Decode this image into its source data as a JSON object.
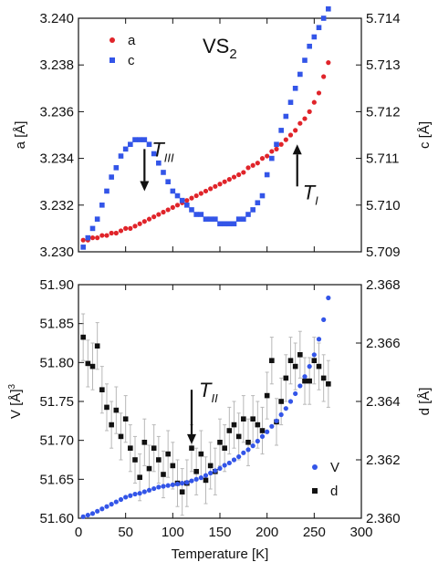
{
  "chart_data": [
    {
      "type": "scatter",
      "title": "VS",
      "title_subscript": "2",
      "ylabel_left": "a [Å]",
      "ylabel_right": "c [Å]",
      "ylim_left": [
        3.23,
        3.24
      ],
      "ylim_right": [
        5.709,
        5.714
      ],
      "xlim": [
        0,
        300
      ],
      "yticks_left": [
        "3.230",
        "3.232",
        "3.234",
        "3.236",
        "3.238",
        "3.240"
      ],
      "yticks_right": [
        "5.709",
        "5.710",
        "5.711",
        "5.712",
        "5.713",
        "5.714"
      ],
      "legend_position": "top-left",
      "colors": {
        "a": "#e0242a",
        "c": "#3355e8"
      },
      "annotations": [
        {
          "text": "T",
          "subscript": "III",
          "arrow": "down",
          "x": 70,
          "y_axis": "right",
          "y_from": 5.7112,
          "y_to": 5.7103
        },
        {
          "text": "T",
          "subscript": "I",
          "arrow": "up",
          "x": 232,
          "y_axis": "right",
          "y_from": 5.7104,
          "y_to": 5.7113
        }
      ],
      "series": [
        {
          "name": "a",
          "axis": "left",
          "marker": "circle",
          "x": [
            5,
            10,
            15,
            20,
            25,
            30,
            35,
            40,
            45,
            50,
            55,
            60,
            65,
            70,
            75,
            80,
            85,
            90,
            95,
            100,
            105,
            110,
            115,
            120,
            125,
            130,
            135,
            140,
            145,
            150,
            155,
            160,
            165,
            170,
            175,
            180,
            185,
            190,
            195,
            200,
            205,
            210,
            215,
            220,
            225,
            230,
            235,
            240,
            245,
            250,
            255,
            260,
            265
          ],
          "y": [
            3.2305,
            3.2305,
            3.2306,
            3.2306,
            3.2307,
            3.2307,
            3.2308,
            3.2308,
            3.2309,
            3.231,
            3.231,
            3.2311,
            3.2312,
            3.2313,
            3.2314,
            3.2315,
            3.2316,
            3.2317,
            3.2318,
            3.2319,
            3.232,
            3.2321,
            3.2322,
            3.2323,
            3.2324,
            3.2325,
            3.2326,
            3.2327,
            3.2328,
            3.2329,
            3.233,
            3.2331,
            3.2332,
            3.2333,
            3.2334,
            3.2336,
            3.2337,
            3.2338,
            3.234,
            3.2341,
            3.2343,
            3.2344,
            3.2346,
            3.2348,
            3.235,
            3.2352,
            3.2355,
            3.2357,
            3.236,
            3.2364,
            3.2368,
            3.2375,
            3.2381
          ]
        },
        {
          "name": "c",
          "axis": "right",
          "marker": "square",
          "x": [
            5,
            10,
            15,
            20,
            25,
            30,
            35,
            40,
            45,
            50,
            55,
            60,
            65,
            70,
            75,
            80,
            85,
            90,
            95,
            100,
            105,
            110,
            115,
            120,
            125,
            130,
            135,
            140,
            145,
            150,
            155,
            160,
            165,
            170,
            175,
            180,
            185,
            190,
            195,
            200,
            205,
            210,
            215,
            220,
            225,
            230,
            235,
            240,
            245,
            250,
            255,
            260,
            265
          ],
          "y": [
            5.7091,
            5.7093,
            5.7095,
            5.7097,
            5.71,
            5.7103,
            5.7106,
            5.7108,
            5.71105,
            5.7112,
            5.7113,
            5.7114,
            5.7114,
            5.7114,
            5.7113,
            5.7111,
            5.7109,
            5.7107,
            5.7105,
            5.7103,
            5.7102,
            5.7101,
            5.71,
            5.7099,
            5.7098,
            5.7098,
            5.7097,
            5.7097,
            5.7097,
            5.7096,
            5.7096,
            5.7096,
            5.7096,
            5.7097,
            5.7097,
            5.7098,
            5.7099,
            5.71005,
            5.7102,
            5.71065,
            5.711,
            5.7113,
            5.7116,
            5.7119,
            5.7122,
            5.7125,
            5.7128,
            5.7131,
            5.7134,
            5.7136,
            5.7138,
            5.714,
            5.7142
          ]
        }
      ]
    },
    {
      "type": "scatter",
      "xlabel": "Temperature [K]",
      "ylabel_left": "V [Å]",
      "ylabel_left_superscript": "3",
      "ylabel_right": "d [Å]",
      "xlim": [
        0,
        300
      ],
      "ylim_left": [
        51.6,
        51.9
      ],
      "ylim_right": [
        2.36,
        2.368
      ],
      "xticks": [
        "0",
        "50",
        "100",
        "150",
        "200",
        "250",
        "300"
      ],
      "yticks_left": [
        "51.60",
        "51.65",
        "51.70",
        "51.75",
        "51.80",
        "51.85",
        "51.90"
      ],
      "yticks_right": [
        "2.360",
        "2.362",
        "2.364",
        "2.366",
        "2.368"
      ],
      "legend_position": "bottom-right",
      "colors": {
        "V": "#3355e8",
        "d": "#111111",
        "errorbar": "#b8b8b8"
      },
      "annotations": [
        {
          "text": "T",
          "subscript": "II",
          "arrow": "down",
          "x": 120,
          "y_axis": "left",
          "y_from": 51.765,
          "y_to": 51.695
        }
      ],
      "series": [
        {
          "name": "V",
          "axis": "left",
          "marker": "circle",
          "x": [
            5,
            10,
            15,
            20,
            25,
            30,
            35,
            40,
            45,
            50,
            55,
            60,
            65,
            70,
            75,
            80,
            85,
            90,
            95,
            100,
            105,
            110,
            115,
            120,
            125,
            130,
            135,
            140,
            145,
            150,
            155,
            160,
            165,
            170,
            175,
            180,
            185,
            190,
            195,
            200,
            205,
            210,
            215,
            220,
            225,
            230,
            235,
            240,
            245,
            250,
            255,
            260,
            265
          ],
          "y": [
            51.602,
            51.604,
            51.606,
            51.609,
            51.612,
            51.615,
            51.618,
            51.621,
            51.624,
            51.627,
            51.629,
            51.631,
            51.632,
            51.634,
            51.636,
            51.638,
            51.64,
            51.641,
            51.642,
            51.643,
            51.644,
            51.645,
            51.646,
            51.648,
            51.65,
            51.652,
            51.655,
            51.658,
            51.661,
            51.664,
            51.668,
            51.671,
            51.675,
            51.679,
            51.684,
            51.688,
            51.693,
            51.699,
            51.705,
            51.711,
            51.718,
            51.725,
            51.733,
            51.741,
            51.75,
            51.76,
            51.77,
            51.782,
            51.795,
            51.81,
            51.83,
            51.855,
            51.883
          ]
        },
        {
          "name": "d",
          "axis": "right",
          "marker": "square",
          "x": [
            5,
            10,
            15,
            20,
            25,
            30,
            35,
            40,
            45,
            50,
            55,
            60,
            65,
            70,
            75,
            80,
            85,
            90,
            95,
            100,
            105,
            110,
            115,
            120,
            125,
            130,
            135,
            140,
            145,
            150,
            155,
            160,
            165,
            170,
            175,
            180,
            185,
            190,
            195,
            200,
            205,
            210,
            215,
            220,
            225,
            230,
            235,
            240,
            245,
            250,
            255,
            260,
            265
          ],
          "y": [
            2.3662,
            2.3653,
            2.3652,
            2.3659,
            2.3644,
            2.3638,
            2.3632,
            2.3637,
            2.3628,
            2.3634,
            2.3624,
            2.362,
            2.3614,
            2.3626,
            2.3617,
            2.3624,
            2.362,
            2.3615,
            2.3622,
            2.3618,
            2.3612,
            2.3609,
            2.3612,
            2.3624,
            2.3616,
            2.3622,
            2.3613,
            2.3618,
            2.3616,
            2.3626,
            2.3624,
            2.363,
            2.3632,
            2.3628,
            2.3634,
            2.3626,
            2.3634,
            2.3632,
            2.363,
            2.3642,
            2.3654,
            2.3633,
            2.364,
            2.3648,
            2.3654,
            2.3652,
            2.3656,
            2.3647,
            2.3647,
            2.3654,
            2.3652,
            2.3648,
            2.3646
          ],
          "err": 0.0008
        }
      ]
    }
  ]
}
